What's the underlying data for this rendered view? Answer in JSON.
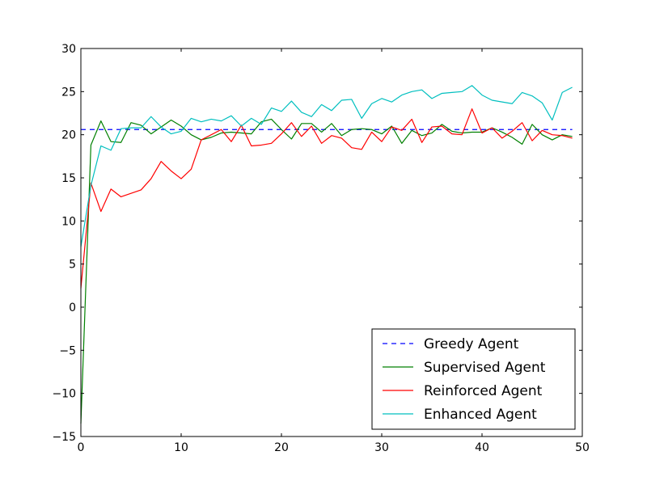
{
  "chart_data": {
    "type": "line",
    "title": "",
    "xlabel": "",
    "ylabel": "",
    "xlim": [
      0,
      50
    ],
    "ylim": [
      -15,
      30
    ],
    "xticks": [
      0,
      10,
      20,
      30,
      40,
      50
    ],
    "yticks": [
      -15,
      -10,
      -5,
      0,
      5,
      10,
      15,
      20,
      25,
      30
    ],
    "xtick_labels": [
      "0",
      "10",
      "20",
      "30",
      "40",
      "50"
    ],
    "ytick_labels": [
      "−15",
      "−10",
      "−5",
      "0",
      "5",
      "10",
      "15",
      "20",
      "25",
      "30"
    ],
    "grid": false,
    "legend_position": "lower-right",
    "x": [
      0,
      1,
      2,
      3,
      4,
      5,
      6,
      7,
      8,
      9,
      10,
      11,
      12,
      13,
      14,
      15,
      16,
      17,
      18,
      19,
      20,
      21,
      22,
      23,
      24,
      25,
      26,
      27,
      28,
      29,
      30,
      31,
      32,
      33,
      34,
      35,
      36,
      37,
      38,
      39,
      40,
      41,
      42,
      43,
      44,
      45,
      46,
      47,
      48,
      49
    ],
    "series": [
      {
        "name": "Greedy Agent",
        "color": "#0000ff",
        "style": "dashed",
        "values": [
          20.6,
          20.6,
          20.6,
          20.6,
          20.6,
          20.6,
          20.6,
          20.6,
          20.6,
          20.6,
          20.6,
          20.6,
          20.6,
          20.6,
          20.6,
          20.6,
          20.6,
          20.6,
          20.6,
          20.6,
          20.6,
          20.6,
          20.6,
          20.6,
          20.6,
          20.6,
          20.6,
          20.6,
          20.6,
          20.6,
          20.6,
          20.6,
          20.6,
          20.6,
          20.6,
          20.6,
          20.6,
          20.6,
          20.6,
          20.6,
          20.6,
          20.6,
          20.6,
          20.6,
          20.6,
          20.6,
          20.6,
          20.6,
          20.6,
          20.6
        ]
      },
      {
        "name": "Supervised Agent",
        "color": "#008000",
        "style": "solid",
        "values": [
          -13.5,
          18.8,
          21.6,
          19.2,
          19.1,
          21.4,
          21.1,
          20.1,
          20.9,
          21.7,
          21.0,
          20.0,
          19.4,
          19.7,
          20.2,
          20.3,
          20.2,
          20.1,
          21.5,
          21.8,
          20.6,
          19.5,
          21.3,
          21.3,
          20.3,
          21.3,
          19.9,
          20.6,
          20.7,
          20.6,
          20.1,
          21.0,
          19.0,
          20.5,
          19.9,
          20.2,
          21.2,
          20.4,
          20.2,
          20.3,
          20.3,
          20.8,
          20.3,
          19.7,
          18.9,
          21.2,
          20.0,
          19.4,
          20.0,
          19.8
        ]
      },
      {
        "name": "Reinforced Agent",
        "color": "#ff0000",
        "style": "solid",
        "values": [
          2.2,
          14.4,
          11.1,
          13.7,
          12.8,
          13.2,
          13.6,
          14.9,
          16.9,
          15.8,
          14.9,
          16.0,
          19.4,
          20.0,
          20.6,
          19.2,
          21.1,
          18.7,
          18.8,
          19.0,
          20.1,
          21.4,
          19.8,
          21.0,
          19.0,
          19.9,
          19.6,
          18.5,
          18.3,
          20.3,
          19.2,
          20.9,
          20.5,
          21.8,
          19.1,
          20.9,
          21.0,
          20.1,
          20.0,
          23.0,
          20.2,
          20.8,
          19.6,
          20.4,
          21.4,
          19.3,
          20.5,
          20.0,
          19.9,
          19.6
        ]
      },
      {
        "name": "Enhanced Agent",
        "color": "#00bfbf",
        "style": "solid",
        "values": [
          7.0,
          14.1,
          18.7,
          18.2,
          20.7,
          20.8,
          20.8,
          22.1,
          20.9,
          20.1,
          20.4,
          21.9,
          21.5,
          21.8,
          21.6,
          22.2,
          21.0,
          21.9,
          21.2,
          23.1,
          22.7,
          23.9,
          22.6,
          22.1,
          23.5,
          22.8,
          24.0,
          24.1,
          21.9,
          23.6,
          24.2,
          23.8,
          24.6,
          25.0,
          25.2,
          24.2,
          24.8,
          24.9,
          25.0,
          25.7,
          24.6,
          24.0,
          23.8,
          23.6,
          24.9,
          24.5,
          23.7,
          21.7,
          24.9,
          25.5
        ]
      }
    ]
  }
}
